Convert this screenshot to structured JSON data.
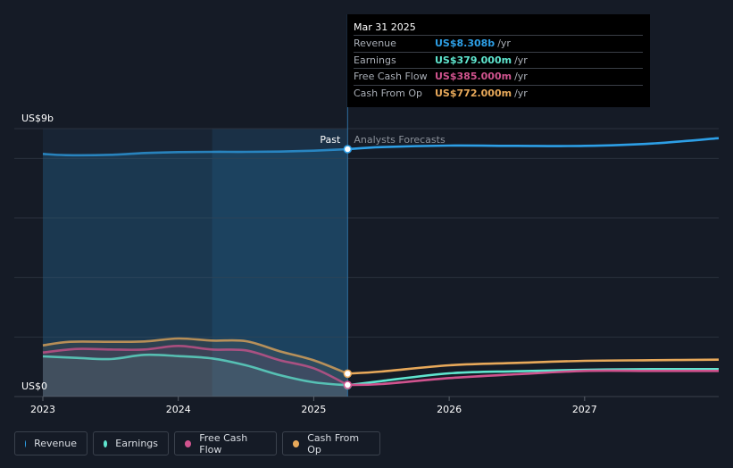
{
  "tooltip": {
    "date": "Mar 31 2025",
    "rows": [
      {
        "label": "Revenue",
        "value": "US$8.308b",
        "unit": "/yr",
        "color": "#2d9fe6"
      },
      {
        "label": "Earnings",
        "value": "US$379.000m",
        "unit": "/yr",
        "color": "#5fe6cf"
      },
      {
        "label": "Free Cash Flow",
        "value": "US$385.000m",
        "unit": "/yr",
        "color": "#d0538e"
      },
      {
        "label": "Cash From Op",
        "value": "US$772.000m",
        "unit": "/yr",
        "color": "#e8a95a"
      }
    ]
  },
  "legend": [
    {
      "label": "Revenue",
      "color": "#2d9fe6"
    },
    {
      "label": "Earnings",
      "color": "#5fe6cf"
    },
    {
      "label": "Free Cash Flow",
      "color": "#d0538e"
    },
    {
      "label": "Cash From Op",
      "color": "#e8a95a"
    }
  ],
  "chart_data": {
    "type": "line",
    "y_top_label": "US$9b",
    "y_bottom_label": "US$0",
    "ylim": [
      0,
      9
    ],
    "xlim": [
      2023.0,
      2027.99
    ],
    "x_ticks": [
      "2023",
      "2024",
      "2025",
      "2026",
      "2027"
    ],
    "past_label": "Past",
    "forecast_label": "Analysts Forecasts",
    "divider_x": 2025.25,
    "grid": true,
    "series": [
      {
        "name": "Revenue",
        "color": "#2d9fe6",
        "x": [
          2023.0,
          2023.17,
          2023.5,
          2023.75,
          2024.0,
          2024.25,
          2024.5,
          2024.75,
          2025.0,
          2025.25,
          2025.5,
          2026.0,
          2026.5,
          2027.0,
          2027.5,
          2027.99
        ],
        "y": [
          8.15,
          8.11,
          8.12,
          8.18,
          8.21,
          8.22,
          8.22,
          8.23,
          8.26,
          8.31,
          8.38,
          8.43,
          8.42,
          8.42,
          8.5,
          8.68
        ]
      },
      {
        "name": "Earnings",
        "color": "#5fe6cf",
        "x": [
          2023.0,
          2023.25,
          2023.5,
          2023.75,
          2024.0,
          2024.25,
          2024.5,
          2024.75,
          2025.0,
          2025.25,
          2025.5,
          2026.0,
          2026.5,
          2027.0,
          2027.5,
          2027.99
        ],
        "y": [
          1.35,
          1.3,
          1.26,
          1.4,
          1.36,
          1.28,
          1.05,
          0.72,
          0.48,
          0.38,
          0.52,
          0.78,
          0.85,
          0.9,
          0.92,
          0.92
        ]
      },
      {
        "name": "Free Cash Flow",
        "color": "#d0538e",
        "x": [
          2023.0,
          2023.25,
          2023.5,
          2023.75,
          2024.0,
          2024.25,
          2024.5,
          2024.75,
          2025.0,
          2025.25,
          2025.5,
          2026.0,
          2026.5,
          2027.0,
          2027.5,
          2027.99
        ],
        "y": [
          1.48,
          1.6,
          1.58,
          1.58,
          1.7,
          1.58,
          1.55,
          1.22,
          0.95,
          0.39,
          0.42,
          0.62,
          0.75,
          0.86,
          0.86,
          0.86
        ]
      },
      {
        "name": "Cash From Op",
        "color": "#e8a95a",
        "x": [
          2023.0,
          2023.2,
          2023.5,
          2023.75,
          2024.0,
          2024.25,
          2024.5,
          2024.75,
          2025.0,
          2025.25,
          2025.5,
          2026.0,
          2026.5,
          2027.0,
          2027.5,
          2027.99
        ],
        "y": [
          1.72,
          1.84,
          1.84,
          1.85,
          1.95,
          1.88,
          1.86,
          1.52,
          1.22,
          0.77,
          0.84,
          1.05,
          1.13,
          1.2,
          1.22,
          1.24
        ]
      }
    ]
  }
}
